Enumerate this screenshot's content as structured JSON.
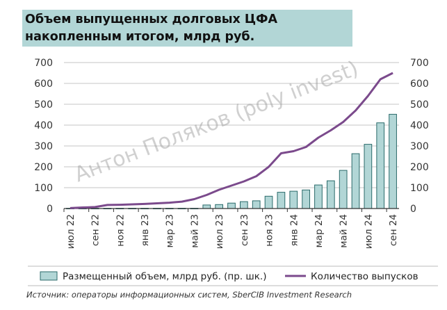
{
  "title": "Объем выпущенных долговых ЦФА накопленным итогом, млрд руб.",
  "source": "Источник: операторы информационных систем, SberCIB Investment Research",
  "watermark": "Антон Поляков (poly invest)",
  "chart_data": {
    "type": "bar+line",
    "title": "Объем выпущенных долговых ЦФА накопленным итогом, млрд руб.",
    "categories": [
      "июл 22",
      "авг 22",
      "сен 22",
      "окт 22",
      "ноя 22",
      "дек 22",
      "янв 23",
      "фев 23",
      "мар 23",
      "апр 23",
      "май 23",
      "июн 23",
      "июл 23",
      "авг 23",
      "сен 23",
      "окт 23",
      "ноя 23",
      "дек 23",
      "янв 24",
      "фев 24",
      "мар 24",
      "апр 24",
      "май 24",
      "июн 24",
      "июл 24",
      "авг 24",
      "сен 24"
    ],
    "tick_labels": [
      "июл 22",
      "сен 22",
      "ноя 22",
      "янв 23",
      "мар 23",
      "май 23",
      "июл 23",
      "сен 23",
      "ноя 23",
      "янв 24",
      "мар 24",
      "май 24",
      "июл 24",
      "сен 24"
    ],
    "series": [
      {
        "name": "Размещенный объем, млрд руб. (пр. шк.)",
        "type": "bar",
        "axis": "right",
        "color": "#b2d6d6",
        "values": [
          1,
          1,
          1,
          1,
          1,
          1,
          1,
          1,
          1,
          1,
          1,
          17,
          19,
          26,
          33,
          37,
          59,
          78,
          83,
          89,
          113,
          133,
          183,
          263,
          308,
          411,
          452
        ]
      },
      {
        "name": "Количество выпусков",
        "type": "line",
        "axis": "left",
        "color": "#7b4a8c",
        "values": [
          2,
          5,
          7,
          17,
          18,
          20,
          22,
          25,
          28,
          33,
          45,
          65,
          90,
          110,
          130,
          155,
          200,
          265,
          275,
          295,
          340,
          375,
          415,
          470,
          540,
          620,
          650
        ]
      }
    ],
    "ylim_left": [
      0,
      700
    ],
    "ylim_right": [
      0,
      700
    ],
    "yticks": [
      0,
      100,
      200,
      300,
      400,
      500,
      600,
      700
    ],
    "grid": true,
    "legend": "bottom"
  }
}
